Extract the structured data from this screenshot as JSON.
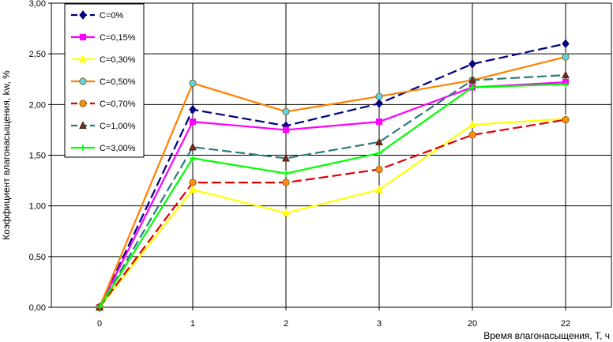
{
  "chart_data": {
    "type": "line",
    "title": "",
    "xlabel": "Время влагонасыщения, Т, ч",
    "ylabel": "Коэффициент влагонасыщения, kw, %",
    "categories": [
      "0",
      "1",
      "2",
      "3",
      "20",
      "22"
    ],
    "ylim": [
      0,
      3
    ],
    "yticks": [
      "0,00",
      "0,50",
      "1,00",
      "1,50",
      "2,00",
      "2,50",
      "3,00"
    ],
    "grid": "horizontal",
    "legend_position": "top-left",
    "series": [
      {
        "name": "C=0%",
        "values": [
          0,
          1.95,
          1.79,
          2.01,
          2.4,
          2.6
        ],
        "color": "#000080",
        "dash": "dashed",
        "marker": "diamond"
      },
      {
        "name": "C=0,15%",
        "values": [
          0,
          1.83,
          1.75,
          1.83,
          2.17,
          2.22
        ],
        "color": "#ff00ff",
        "dash": "solid",
        "marker": "square"
      },
      {
        "name": "C=0,30%",
        "values": [
          0,
          1.16,
          0.93,
          1.16,
          1.8,
          1.86
        ],
        "color": "#ffff00",
        "dash": "solid",
        "marker": "triangle"
      },
      {
        "name": "C=0,50%",
        "values": [
          0,
          2.21,
          1.93,
          2.08,
          2.24,
          2.47
        ],
        "color": "#ff8000",
        "dash": "solid",
        "marker": "circle",
        "marker_fill": "#5fd3e6"
      },
      {
        "name": "C=0,70%",
        "values": [
          0,
          1.23,
          1.23,
          1.36,
          1.7,
          1.85
        ],
        "color": "#e00000",
        "dash": "dashed",
        "marker": "circle",
        "marker_fill": "#ff8c1a"
      },
      {
        "name": "C=1,00%",
        "values": [
          0,
          1.58,
          1.47,
          1.63,
          2.24,
          2.29
        ],
        "color": "#2e7a7a",
        "dash": "dashed",
        "marker": "triangle",
        "marker_fill": "#7a2a1a"
      },
      {
        "name": "C=3,00%",
        "values": [
          0,
          1.47,
          1.32,
          1.52,
          2.17,
          2.2
        ],
        "color": "#00ff00",
        "dash": "solid",
        "marker": "cross"
      }
    ]
  }
}
